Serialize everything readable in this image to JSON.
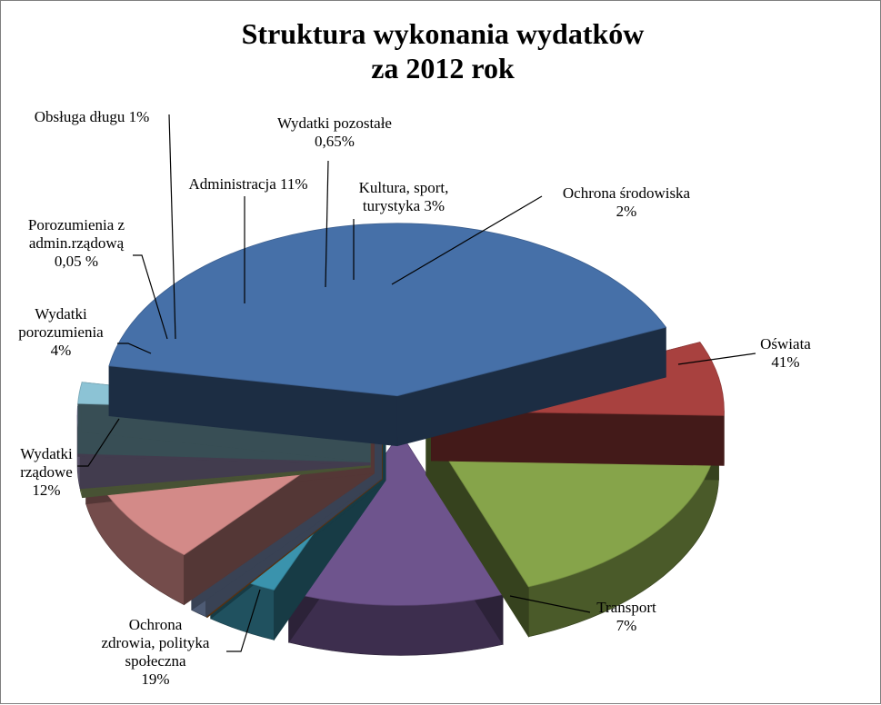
{
  "chart_data": {
    "type": "pie",
    "style": "3d-exploded",
    "title_lines": [
      "Struktura  wykonania  wydatków",
      "za 2012 rok"
    ],
    "slices": [
      {
        "label_lines": [
          "Oświata",
          "41%"
        ],
        "value": 41,
        "color": "#4670A8"
      },
      {
        "label_lines": [
          "Transport",
          "7%"
        ],
        "value": 7,
        "color": "#A8413F"
      },
      {
        "label_lines": [
          "Ochrona",
          "zdrowia, polityka",
          "społeczna",
          "19%"
        ],
        "value": 19,
        "color": "#86A44A"
      },
      {
        "label_lines": [
          "Wydatki",
          "rządowe",
          "12%"
        ],
        "value": 12,
        "color": "#6E548D"
      },
      {
        "label_lines": [
          "Wydatki",
          "porozumienia",
          "4%"
        ],
        "value": 4,
        "color": "#3A93AD"
      },
      {
        "label_lines": [
          "Porozumienia z",
          "admin.rządową",
          "0,05 %"
        ],
        "value": 0.05,
        "color": "#D57E2F"
      },
      {
        "label_lines": [
          "Obsługa długu 1%"
        ],
        "value": 1,
        "color": "#8EA5D2"
      },
      {
        "label_lines": [
          "Administracja 11%"
        ],
        "value": 11,
        "color": "#D38A88"
      },
      {
        "label_lines": [
          "Wydatki  pozostałe",
          "0,65%"
        ],
        "value": 0.65,
        "color": "#B5CE83"
      },
      {
        "label_lines": [
          "Kultura, sport,",
          "turystyka  3%"
        ],
        "value": 3,
        "color": "#A496C2"
      },
      {
        "label_lines": [
          "Ochrona środowiska",
          "2%"
        ],
        "value": 2,
        "color": "#8CC3D5"
      }
    ],
    "legend": "none"
  }
}
